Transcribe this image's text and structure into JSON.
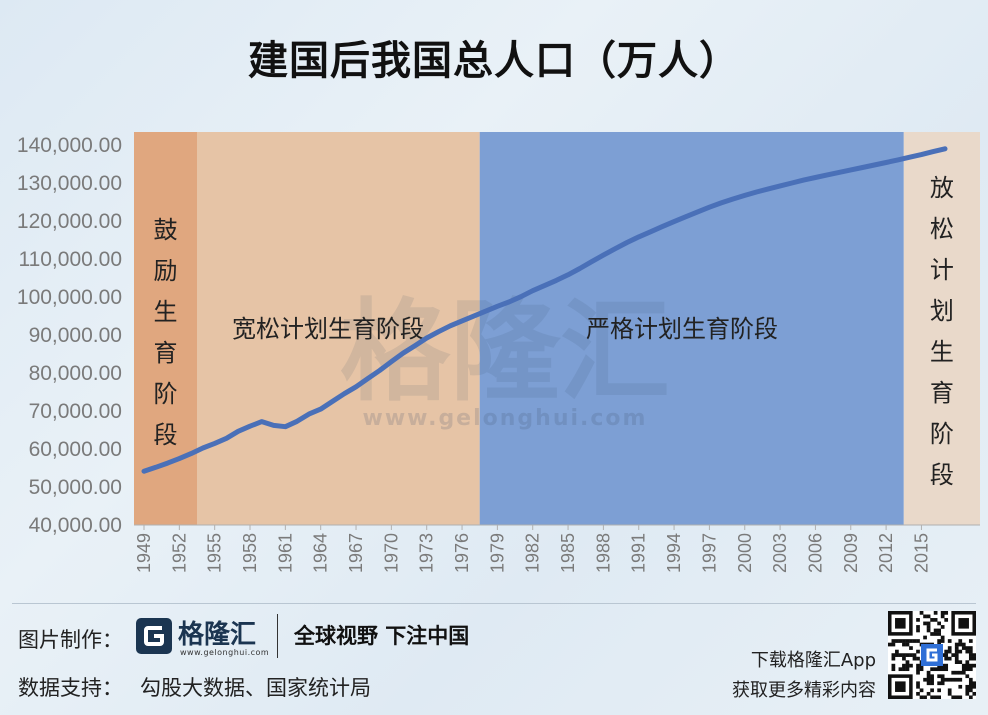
{
  "title": "建国后我国总人口（万人）",
  "colors": {
    "encourage": "#e0a77f",
    "relaxed": "#e6c4a6",
    "strict": "#7d9fd4",
    "release": "#e9d9ca",
    "line": "#4a70b8",
    "axis_text": "#7a7a7a"
  },
  "watermark": {
    "cn": "格隆汇",
    "url": "www.gelonghui.com"
  },
  "footer": {
    "made_by_label": "图片制作：",
    "logo_name": "格隆汇",
    "logo_url": "www.gelonghui.com",
    "slogan": "全球视野 下注中国",
    "data_label": "数据支持：",
    "data_source": "勾股大数据、国家统计局",
    "app_line1": "下载格隆汇App",
    "app_line2": "获取更多精彩内容"
  },
  "chart_data": {
    "type": "line",
    "title": "建国后我国总人口（万人）",
    "xlabel": "",
    "ylabel": "",
    "ylim": [
      40000,
      140000
    ],
    "xlim": [
      1949,
      2018
    ],
    "yticks": [
      "40,000.00",
      "50,000.00",
      "60,000.00",
      "70,000.00",
      "80,000.00",
      "90,000.00",
      "100,000.00",
      "110,000.00",
      "120,000.00",
      "130,000.00",
      "140,000.00"
    ],
    "xticks": [
      "1949",
      "1952",
      "1955",
      "1958",
      "1961",
      "1964",
      "1967",
      "1970",
      "1973",
      "1976",
      "1979",
      "1982",
      "1985",
      "1988",
      "1991",
      "1994",
      "1997",
      "2000",
      "2003",
      "2006",
      "2009",
      "2012",
      "2015"
    ],
    "phases": [
      {
        "label": "鼓励生育阶段",
        "from": 1949,
        "to": 1953.5,
        "color": "#e0a77f",
        "vertical": true
      },
      {
        "label": "宽松计划生育阶段",
        "from": 1953.5,
        "to": 1977.5,
        "color": "#e6c4a6",
        "vertical": false
      },
      {
        "label": "严格计划生育阶段",
        "from": 1977.5,
        "to": 2013.5,
        "color": "#7d9fd4",
        "vertical": false
      },
      {
        "label": "放松计划生育阶段",
        "from": 2013.5,
        "to": 2018,
        "color": "#e9d9ca",
        "vertical": true
      }
    ],
    "x": [
      1949,
      1950,
      1951,
      1952,
      1953,
      1954,
      1955,
      1956,
      1957,
      1958,
      1959,
      1960,
      1961,
      1962,
      1963,
      1964,
      1965,
      1966,
      1967,
      1968,
      1969,
      1970,
      1971,
      1972,
      1973,
      1974,
      1975,
      1976,
      1977,
      1978,
      1979,
      1980,
      1981,
      1982,
      1983,
      1984,
      1985,
      1986,
      1987,
      1988,
      1989,
      1990,
      1991,
      1992,
      1993,
      1994,
      1995,
      1996,
      1997,
      1998,
      1999,
      2000,
      2001,
      2002,
      2003,
      2004,
      2005,
      2006,
      2007,
      2008,
      2009,
      2010,
      2011,
      2012,
      2013,
      2014,
      2015,
      2016,
      2017
    ],
    "series": [
      {
        "values": [
          54167,
          55196,
          56300,
          57482,
          58796,
          60266,
          61465,
          62828,
          64653,
          65994,
          67207,
          66207,
          65859,
          67296,
          69172,
          70499,
          72538,
          74542,
          76368,
          78534,
          80671,
          82992,
          85229,
          87177,
          89211,
          90859,
          92420,
          93717,
          94974,
          96259,
          97542,
          98705,
          100072,
          101654,
          103008,
          104357,
          105851,
          107507,
          109300,
          111026,
          112704,
          114333,
          115823,
          117171,
          118517,
          119850,
          121121,
          122389,
          123626,
          124761,
          125786,
          126743,
          127627,
          128453,
          129227,
          129988,
          130756,
          131448,
          132129,
          132802,
          133450,
          134091,
          134735,
          135404,
          136072,
          136782,
          137462,
          138271,
          139008
        ]
      }
    ]
  }
}
